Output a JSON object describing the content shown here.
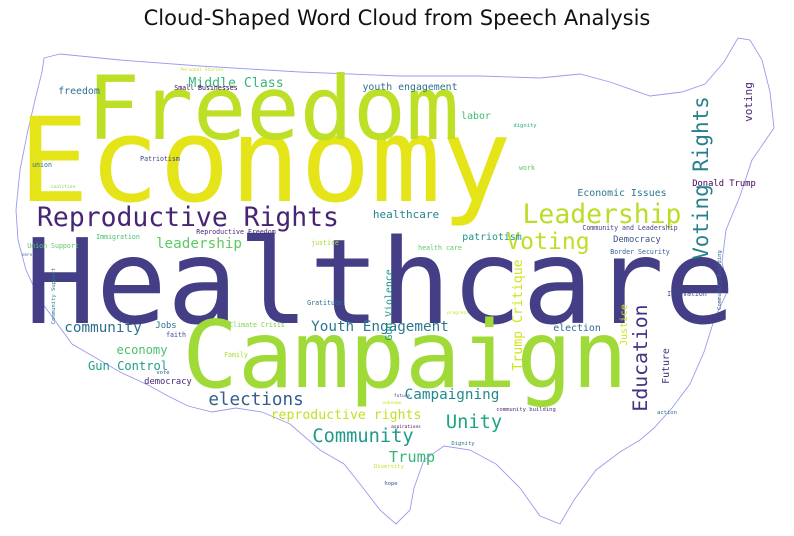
{
  "chart_data": {
    "type": "wordcloud",
    "title": "Cloud-Shaped Word Cloud from Speech Analysis",
    "mask_outline_color": "#9a9af0",
    "words": [
      {
        "text": "Healthcare",
        "weight": 100,
        "color": "#433e85"
      },
      {
        "text": "Economy",
        "weight": 86,
        "color": "#e5e419"
      },
      {
        "text": "Campaign",
        "weight": 68,
        "color": "#a0da39"
      },
      {
        "text": "Freedom",
        "weight": 65,
        "color": "#bddf26"
      },
      {
        "text": "Reproductive Rights",
        "weight": 24,
        "color": "#482475"
      },
      {
        "text": "Leadership",
        "weight": 24,
        "color": "#bade28"
      },
      {
        "text": "Voting",
        "weight": 21,
        "color": "#bddf26"
      },
      {
        "text": "Voting Rights",
        "weight": 19,
        "color": "#27808e"
      },
      {
        "text": "Education",
        "weight": 18,
        "color": "#46327e"
      },
      {
        "text": "Unity",
        "weight": 17,
        "color": "#20a386"
      },
      {
        "text": "Community",
        "weight": 17,
        "color": "#1f9a8a"
      },
      {
        "text": "elections",
        "weight": 16,
        "color": "#365c8d"
      },
      {
        "text": "Trump",
        "weight": 14,
        "color": "#35b779"
      },
      {
        "text": "Campaigning",
        "weight": 13,
        "color": "#23898e"
      },
      {
        "text": "Youth Engagement",
        "weight": 13,
        "color": "#2a788e"
      },
      {
        "text": "community",
        "weight": 13,
        "color": "#2d708e"
      },
      {
        "text": "leadership",
        "weight": 13,
        "color": "#5ec962"
      },
      {
        "text": "Middle Class",
        "weight": 12,
        "color": "#35b779"
      },
      {
        "text": "Trump Critique",
        "weight": 12,
        "color": "#d2e21b"
      },
      {
        "text": "reproductive rights",
        "weight": 12,
        "color": "#c2df23"
      },
      {
        "text": "Gun Control",
        "weight": 11,
        "color": "#1f9e89"
      },
      {
        "text": "economy",
        "weight": 11,
        "color": "#4ac16d"
      },
      {
        "text": "healthcare",
        "weight": 10,
        "color": "#26828e"
      },
      {
        "text": "voting",
        "weight": 10,
        "color": "#482878"
      },
      {
        "text": "Economic Issues",
        "weight": 9,
        "color": "#2a788e"
      },
      {
        "text": "youth engagement",
        "weight": 9,
        "color": "#2c728e"
      },
      {
        "text": "patriotism",
        "weight": 9,
        "color": "#1f958b"
      },
      {
        "text": "election",
        "weight": 9,
        "color": "#31688e"
      },
      {
        "text": "labor",
        "weight": 9,
        "color": "#3fbc73"
      },
      {
        "text": "Future",
        "weight": 9,
        "color": "#46327e"
      },
      {
        "text": "Justice",
        "weight": 9,
        "color": "#d8e219"
      },
      {
        "text": "freedom",
        "weight": 9,
        "color": "#2c728e"
      },
      {
        "text": "Gun Violence",
        "weight": 9,
        "color": "#1f968b"
      },
      {
        "text": "democracy",
        "weight": 8,
        "color": "#482878"
      },
      {
        "text": "Donald Trump",
        "weight": 8,
        "color": "#440154"
      },
      {
        "text": "Democracy",
        "weight": 8,
        "color": "#3b528b"
      },
      {
        "text": "Jobs",
        "weight": 8,
        "color": "#2d708e"
      },
      {
        "text": "Community and Leadership",
        "weight": 6,
        "color": "#433e85"
      },
      {
        "text": "Border Security",
        "weight": 6,
        "color": "#365c8d"
      },
      {
        "text": "Innovation",
        "weight": 6,
        "color": "#3e4a89"
      },
      {
        "text": "Immigration",
        "weight": 6,
        "color": "#44bf70"
      },
      {
        "text": "Reproductive Freedom",
        "weight": 6,
        "color": "#482475"
      },
      {
        "text": "Climate Crisis",
        "weight": 6,
        "color": "#7ad151"
      },
      {
        "text": "faith",
        "weight": 6,
        "color": "#3e4a89"
      },
      {
        "text": "Family",
        "weight": 6,
        "color": "#a5db36"
      },
      {
        "text": "Gratitude",
        "weight": 6,
        "color": "#2e6e8e"
      },
      {
        "text": "Union Support",
        "weight": 6,
        "color": "#5ec962"
      },
      {
        "text": "justice",
        "weight": 6,
        "color": "#a5db36"
      },
      {
        "text": "health care",
        "weight": 6,
        "color": "#5ec962"
      },
      {
        "text": "Small Businesses",
        "weight": 6,
        "color": "#440154"
      },
      {
        "text": "Patriotism",
        "weight": 6,
        "color": "#414487"
      },
      {
        "text": "union",
        "weight": 6,
        "color": "#2c728e"
      },
      {
        "text": "work",
        "weight": 6,
        "color": "#5ec962"
      },
      {
        "text": "vote",
        "weight": 5,
        "color": "#3b528b"
      },
      {
        "text": "Diversity",
        "weight": 5,
        "color": "#bddf26"
      },
      {
        "text": "Dignity",
        "weight": 5,
        "color": "#2c728e"
      },
      {
        "text": "dignity",
        "weight": 5,
        "color": "#22a884"
      },
      {
        "text": "action",
        "weight": 5,
        "color": "#2c728e"
      },
      {
        "text": "hope",
        "weight": 5,
        "color": "#3b528b"
      },
      {
        "text": "Community Support",
        "weight": 5,
        "color": "#2a788e"
      },
      {
        "text": "Community Building",
        "weight": 5,
        "color": "#31688e"
      },
      {
        "text": "community building",
        "weight": 5,
        "color": "#472d7b"
      },
      {
        "text": "coalition",
        "weight": 4,
        "color": "#7ad151"
      },
      {
        "text": "Personal Stories",
        "weight": 4,
        "color": "#c8e020"
      },
      {
        "text": "service",
        "weight": 4,
        "color": "#3b528b"
      },
      {
        "text": "aspirations",
        "weight": 4,
        "color": "#440154"
      },
      {
        "text": "future",
        "weight": 4,
        "color": "#3e4a89"
      },
      {
        "text": "progress",
        "weight": 4,
        "color": "#c8e020"
      },
      {
        "text": "unknown",
        "weight": 4,
        "color": "#c8e020"
      }
    ]
  }
}
